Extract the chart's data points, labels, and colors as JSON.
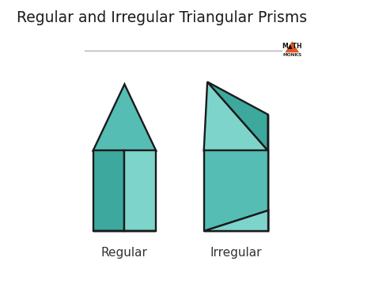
{
  "title": "Regular and Irregular Triangular Prisms",
  "title_fontsize": 13.5,
  "label_regular": "Regular",
  "label_irregular": "Irregular",
  "label_fontsize": 11,
  "bg_color": "#ffffff",
  "teal_light": "#7dd4ca",
  "teal_mid": "#55bdb4",
  "teal_dark": "#3da89e",
  "edge_color": "#1a1a1a",
  "edge_width": 1.7,
  "logo_orange": "#e05820",
  "logo_dark": "#2a2a2a"
}
